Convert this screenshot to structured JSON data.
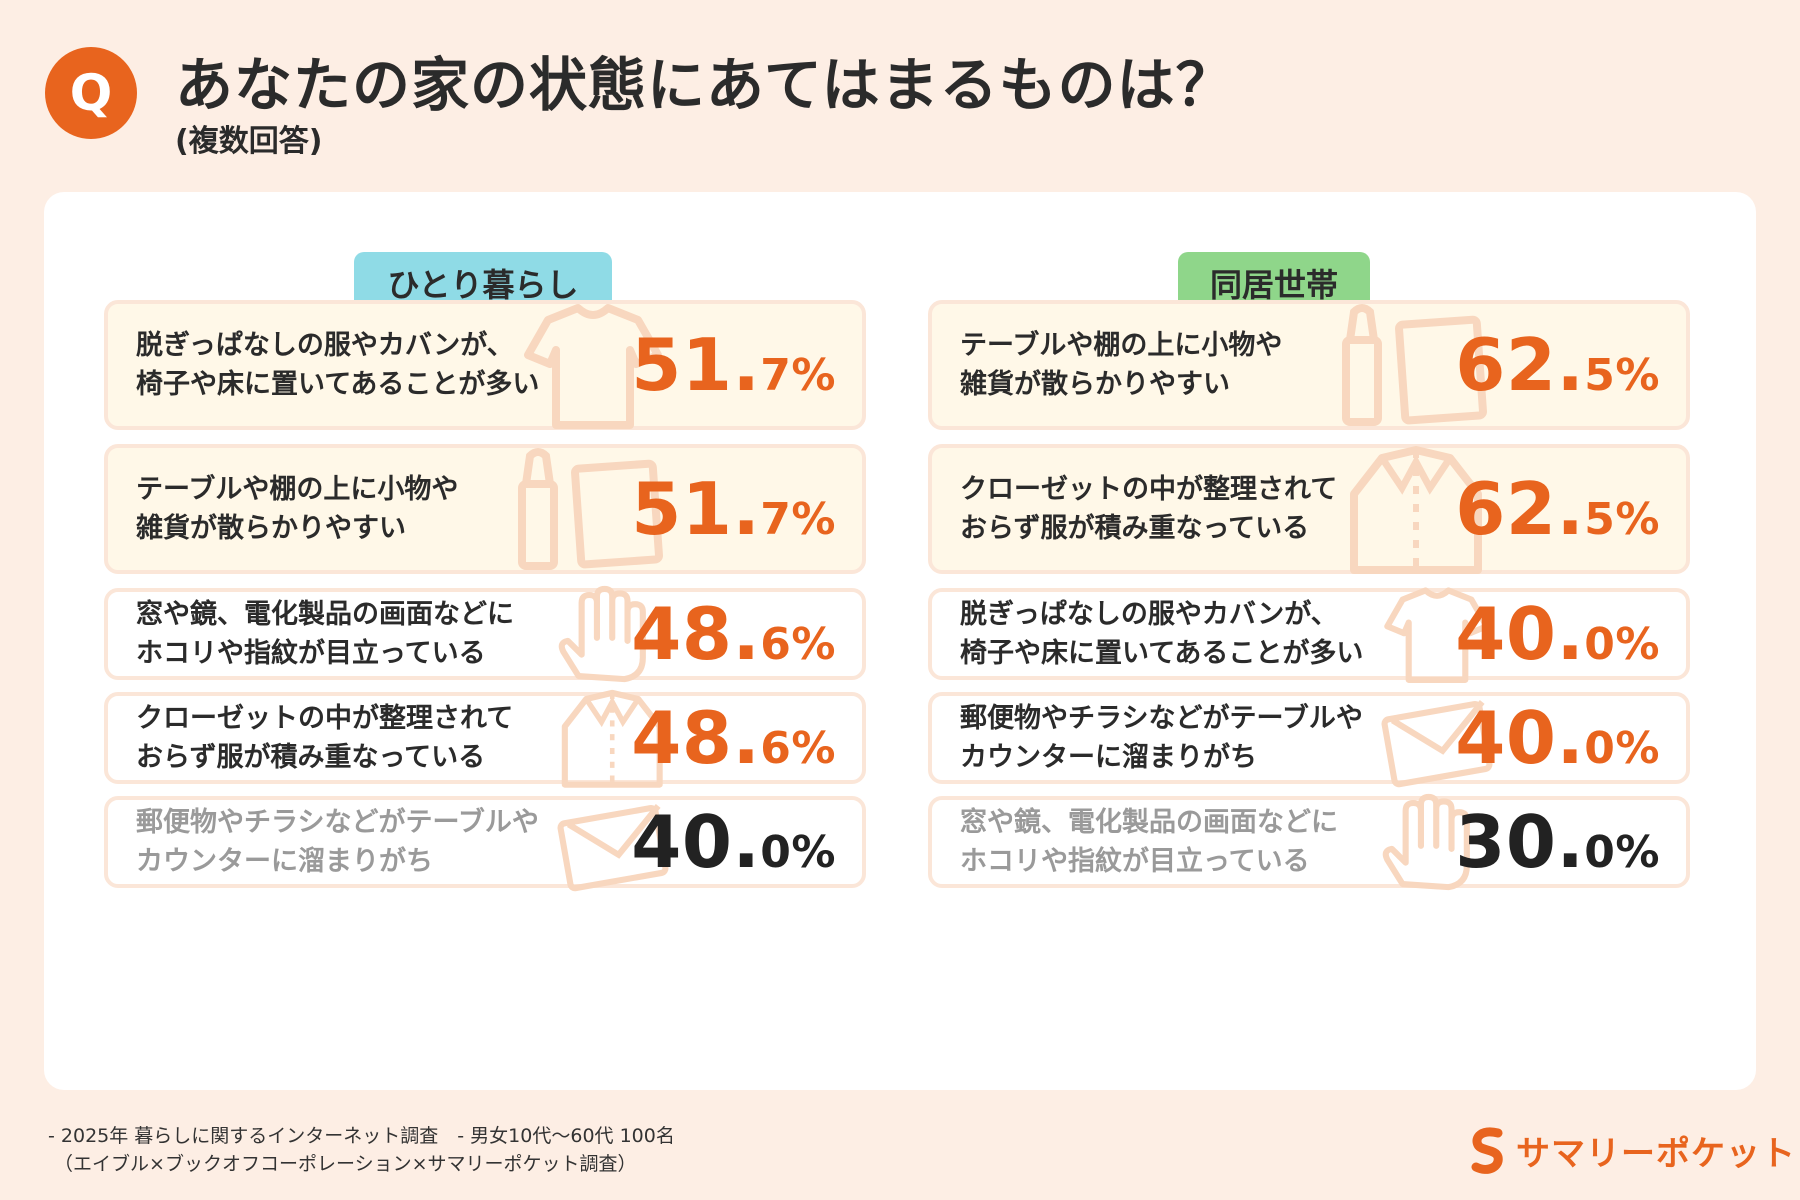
{
  "header": {
    "badge": "Q",
    "title": "あなたの家の状態にあてはまるものは？",
    "subtitle": "(複数回答)"
  },
  "colors": {
    "accent": "#e8641e",
    "background": "#fdeee4",
    "solo_header": "#8fdbe6",
    "family_header": "#8fd68a",
    "top_item_bg": "#fff8e8",
    "muted_value": "#222222"
  },
  "chart_data": [
    {
      "type": "table",
      "title": "ひとり暮らし",
      "unit": "%",
      "rows": [
        {
          "label": "脱ぎっぱなしの服やカバンが、\n椅子や床に置いてあることが多い",
          "int": "51.",
          "dec": "7%",
          "value": 51.7,
          "icon": "shirt-icon"
        },
        {
          "label": "テーブルや棚の上に小物や\n雑貨が散らかりやすい",
          "int": "51.",
          "dec": "7%",
          "value": 51.7,
          "icon": "clutter-icon"
        },
        {
          "label": "窓や鏡、電化製品の画面などに\nホコリや指紋が目立っている",
          "int": "48.",
          "dec": "6%",
          "value": 48.6,
          "icon": "hand-icon"
        },
        {
          "label": "クローゼットの中が整理されて\nおらず服が積み重なっている",
          "int": "48.",
          "dec": "6%",
          "value": 48.6,
          "icon": "jacket-icon"
        },
        {
          "label": "郵便物やチラシなどがテーブルや\nカウンターに溜まりがち",
          "int": "40.",
          "dec": "0%",
          "value": 40.0,
          "icon": "envelope-icon"
        }
      ]
    },
    {
      "type": "table",
      "title": "同居世帯",
      "unit": "%",
      "rows": [
        {
          "label": "テーブルや棚の上に小物や\n雑貨が散らかりやすい",
          "int": "62.",
          "dec": "5%",
          "value": 62.5,
          "icon": "clutter-icon"
        },
        {
          "label": "クローゼットの中が整理されて\nおらず服が積み重なっている",
          "int": "62.",
          "dec": "5%",
          "value": 62.5,
          "icon": "jacket-icon"
        },
        {
          "label": "脱ぎっぱなしの服やカバンが、\n椅子や床に置いてあることが多い",
          "int": "40.",
          "dec": "0%",
          "value": 40.0,
          "icon": "shirt-icon"
        },
        {
          "label": "郵便物やチラシなどがテーブルや\nカウンターに溜まりがち",
          "int": "40.",
          "dec": "0%",
          "value": 40.0,
          "icon": "envelope-icon"
        },
        {
          "label": "窓や鏡、電化製品の画面などに\nホコリや指紋が目立っている",
          "int": "30.",
          "dec": "0%",
          "value": 30.0,
          "icon": "hand-icon"
        }
      ]
    }
  ],
  "footer": {
    "note": "- 2025年 暮らしに関するインターネット調査　- 男女10代～60代 100名\n （エイブル×ブックオフコーポレーション×サマリーポケット調査）"
  },
  "logo": {
    "text": "サマリーポケット",
    "icon": "summary-pocket-logo-icon"
  }
}
